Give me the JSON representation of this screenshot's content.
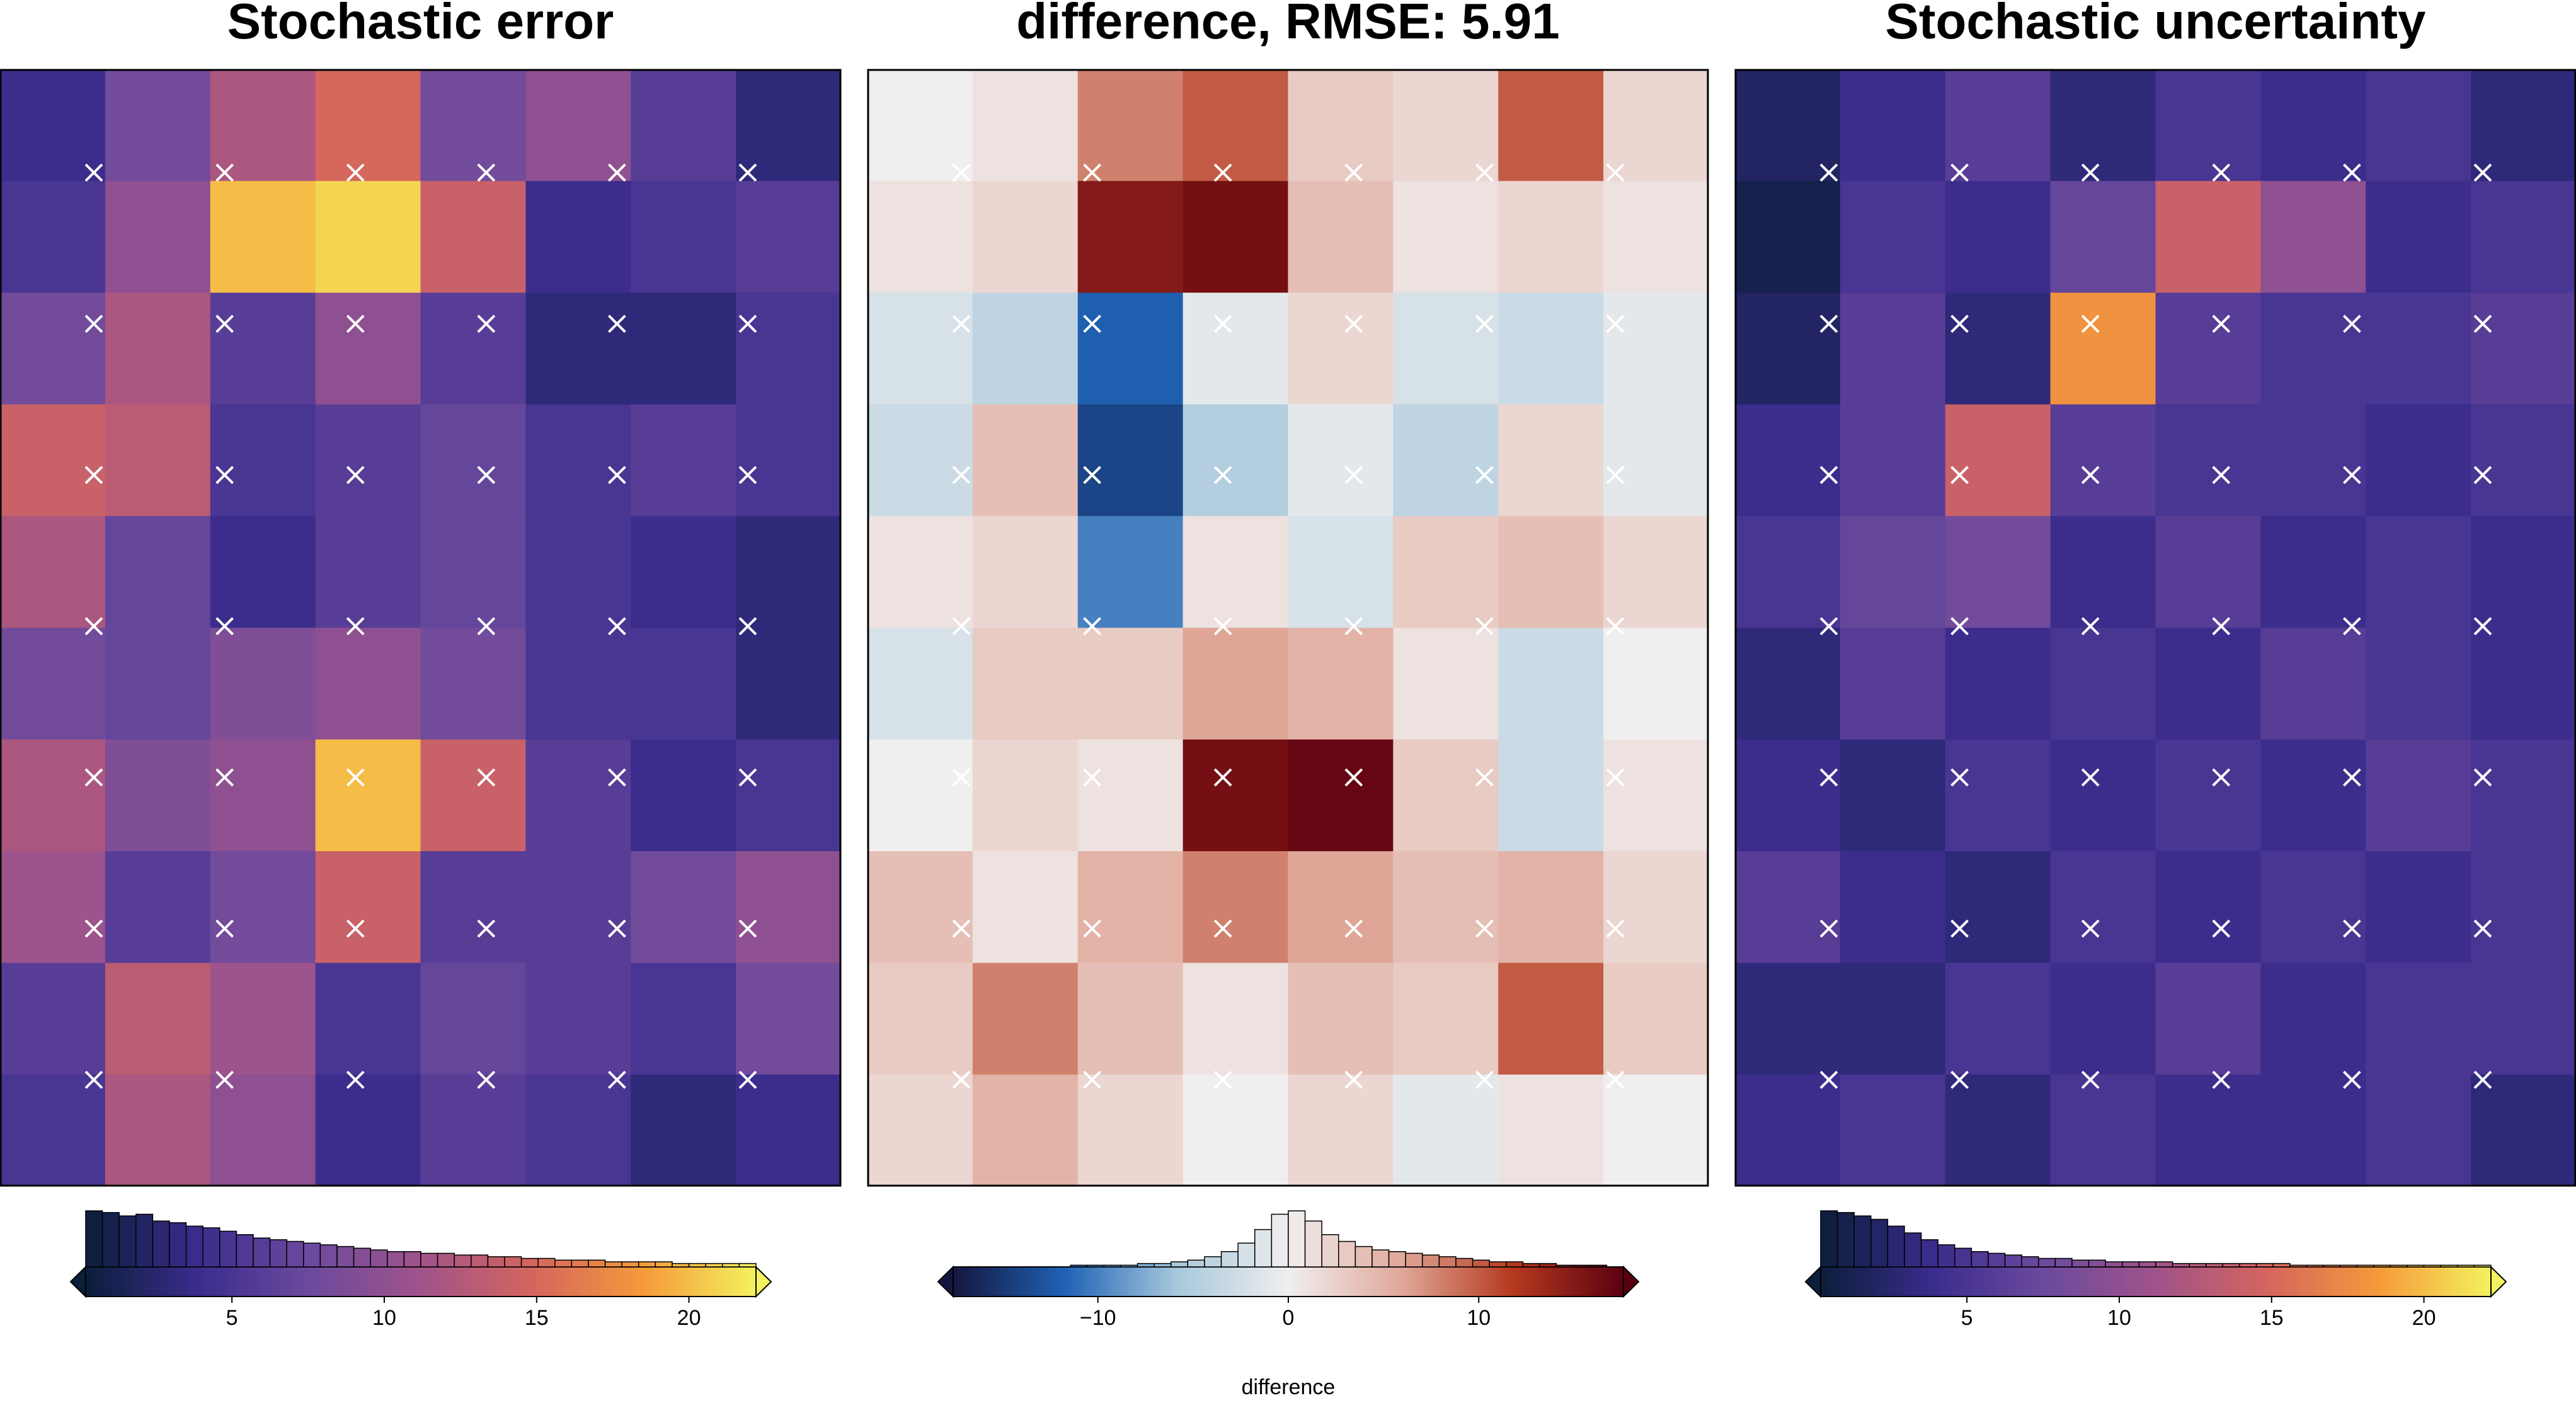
{
  "chart_data": [
    {
      "type": "heatmap",
      "title": "Stochastic error",
      "colors": [
        "#0b1e3a",
        "#3a2c8c",
        "#6b4a9e",
        "#a0538a",
        "#d4655e",
        "#f59a3a",
        "#f4f25e"
      ],
      "lim": [
        0.2,
        22.2
      ],
      "ticks": [
        5,
        10,
        15,
        20
      ],
      "z": [
        [
          4,
          8,
          12,
          15,
          8,
          10,
          6,
          3
        ],
        [
          5,
          10,
          20,
          21,
          14,
          4,
          5,
          6
        ],
        [
          8,
          12,
          6,
          10,
          6,
          3,
          3,
          5
        ],
        [
          14,
          13,
          5,
          6,
          7,
          5,
          6,
          5
        ],
        [
          12,
          7,
          4,
          6,
          7,
          5,
          4,
          3
        ],
        [
          8,
          7,
          9,
          10,
          8,
          5,
          5,
          3
        ],
        [
          12,
          9,
          10,
          20,
          14,
          6,
          4,
          5
        ],
        [
          11,
          6,
          8,
          14,
          6,
          6,
          8,
          10
        ],
        [
          6,
          13,
          11,
          5,
          7,
          6,
          5,
          8
        ],
        [
          5,
          12,
          10,
          4,
          6,
          5,
          3,
          4
        ]
      ],
      "bins": [
        0.2,
        0.75,
        1.3,
        1.85,
        2.4,
        2.95,
        3.5,
        4.05,
        4.6,
        5.15,
        5.7,
        6.25,
        6.8,
        7.35,
        7.9,
        8.45,
        9,
        9.55,
        10.1,
        10.65,
        11.2,
        11.75,
        12.3,
        12.85,
        13.4,
        13.95,
        14.5,
        15.05,
        15.6,
        16.15,
        16.7,
        17.25,
        17.8,
        18.35,
        18.9,
        19.45,
        20,
        20.55,
        21.1,
        21.65,
        22.2
      ],
      "counts": [
        33,
        32,
        30,
        31,
        27,
        26,
        24,
        23,
        21,
        19,
        17,
        16,
        15,
        14,
        13,
        12,
        11,
        10,
        9,
        9,
        8,
        8,
        7,
        7,
        6,
        6,
        5,
        5,
        4,
        4,
        4,
        3,
        3,
        3,
        3,
        2,
        2,
        2,
        2,
        2
      ]
    },
    {
      "type": "heatmap",
      "title": "difference, RMSE: 5.91",
      "colors": [
        "#15163f",
        "#1f62b5",
        "#a7c8dc",
        "#f0eeee",
        "#e0a99a",
        "#b53a1f",
        "#5c0010"
      ],
      "lim": [
        -17.6,
        17.6
      ],
      "ticks": [
        {
          "value": -10,
          "label": "−10"
        },
        0,
        10
      ],
      "label": "difference",
      "z": [
        [
          0,
          1,
          8,
          10,
          3,
          2,
          10,
          2
        ],
        [
          1,
          2,
          15,
          16,
          4,
          1,
          2,
          1
        ],
        [
          -2,
          -4,
          -12,
          -1,
          2,
          -2,
          -3,
          -1
        ],
        [
          -3,
          4,
          -14,
          -5,
          -1,
          -4,
          2,
          -1
        ],
        [
          1,
          2,
          -10,
          1,
          -2,
          3,
          4,
          2
        ],
        [
          -2,
          3,
          3,
          6,
          5,
          1,
          -3,
          0
        ],
        [
          0,
          2,
          1,
          16,
          17,
          3,
          -3,
          1
        ],
        [
          4,
          1,
          5,
          8,
          6,
          4,
          5,
          2
        ],
        [
          3,
          8,
          4,
          1,
          4,
          3,
          10,
          3
        ],
        [
          2,
          5,
          2,
          0,
          2,
          -1,
          1,
          0
        ]
      ],
      "bins": [
        -17.6,
        -16.72,
        -15.84,
        -14.96,
        -14.08,
        -13.2,
        -12.32,
        -11.44,
        -10.56,
        -9.68,
        -8.8,
        -7.92,
        -7.04,
        -6.16,
        -5.28,
        -4.4,
        -3.52,
        -2.64,
        -1.76,
        -0.88,
        0,
        0.88,
        1.76,
        2.64,
        3.52,
        4.4,
        5.28,
        6.16,
        7.04,
        7.92,
        8.8,
        9.68,
        10.56,
        11.44,
        12.32,
        13.2,
        14.08,
        14.96,
        15.84,
        16.72,
        17.6
      ],
      "counts": [
        0,
        0,
        0,
        0,
        0,
        0,
        0,
        1,
        1,
        1,
        1,
        2,
        2,
        3,
        4,
        6,
        9,
        14,
        22,
        31,
        33,
        27,
        19,
        15,
        12,
        10,
        9,
        8,
        7,
        6,
        5,
        4,
        3,
        3,
        2,
        2,
        1,
        1,
        1,
        0
      ]
    },
    {
      "type": "heatmap",
      "title": "Stochastic uncertainty",
      "colors": [
        "#0b1e3a",
        "#3a2c8c",
        "#6b4a9e",
        "#a0538a",
        "#d4655e",
        "#f59a3a",
        "#f4f25e"
      ],
      "lim": [
        0.2,
        22.2
      ],
      "ticks": [
        5,
        10,
        15,
        20
      ],
      "z": [
        [
          2,
          4,
          6,
          3,
          5,
          4,
          5,
          3
        ],
        [
          1,
          5,
          4,
          7,
          14,
          10,
          4,
          5
        ],
        [
          2,
          6,
          3,
          18,
          6,
          5,
          5,
          6
        ],
        [
          4,
          6,
          14,
          6,
          5,
          5,
          4,
          5
        ],
        [
          5,
          7,
          8,
          4,
          6,
          4,
          5,
          4
        ],
        [
          3,
          6,
          4,
          5,
          4,
          6,
          5,
          4
        ],
        [
          4,
          3,
          5,
          4,
          5,
          4,
          6,
          5
        ],
        [
          6,
          4,
          3,
          5,
          4,
          5,
          4,
          5
        ],
        [
          3,
          3,
          5,
          4,
          6,
          4,
          5,
          5
        ],
        [
          4,
          5,
          3,
          5,
          4,
          4,
          5,
          3
        ]
      ],
      "bins": [
        0.2,
        0.75,
        1.3,
        1.85,
        2.4,
        2.95,
        3.5,
        4.05,
        4.6,
        5.15,
        5.7,
        6.25,
        6.8,
        7.35,
        7.9,
        8.45,
        9,
        9.55,
        10.1,
        10.65,
        11.2,
        11.75,
        12.3,
        12.85,
        13.4,
        13.95,
        14.5,
        15.05,
        15.6,
        16.15,
        16.7,
        17.25,
        17.8,
        18.35,
        18.9,
        19.45,
        20,
        20.55,
        21.1,
        21.65,
        22.2
      ],
      "counts": [
        33,
        32,
        30,
        28,
        24,
        20,
        16,
        13,
        11,
        9,
        8,
        7,
        6,
        5,
        5,
        4,
        4,
        3,
        3,
        3,
        3,
        2,
        2,
        2,
        2,
        2,
        2,
        2,
        1,
        1,
        1,
        1,
        1,
        1,
        1,
        1,
        1,
        1,
        1,
        1
      ]
    }
  ]
}
